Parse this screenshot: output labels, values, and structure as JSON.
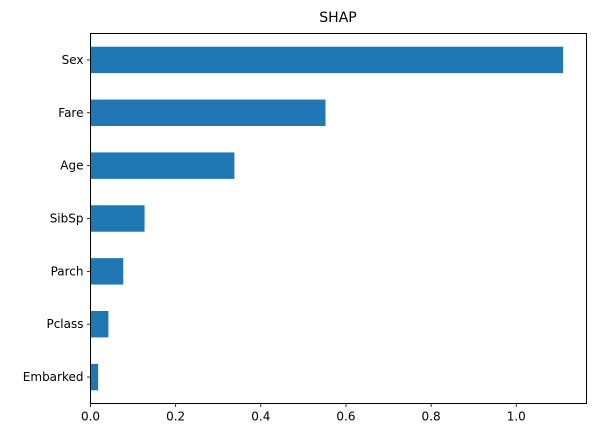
{
  "chart_data": {
    "type": "bar",
    "orientation": "horizontal",
    "title": "SHAP",
    "xlabel": "",
    "ylabel": "",
    "categories": [
      "Sex",
      "Fare",
      "Age",
      "SibSp",
      "Parch",
      "Pclass",
      "Embarked"
    ],
    "values": [
      1.11,
      0.552,
      0.338,
      0.127,
      0.077,
      0.042,
      0.018
    ],
    "xlim": [
      0,
      1.165
    ],
    "xticks": [
      0.0,
      0.2,
      0.4,
      0.6,
      0.8,
      1.0
    ],
    "xtick_labels": [
      "0.0",
      "0.2",
      "0.4",
      "0.6",
      "0.8",
      "1.0"
    ],
    "grid": false,
    "bar_color": "#1f77b4"
  }
}
